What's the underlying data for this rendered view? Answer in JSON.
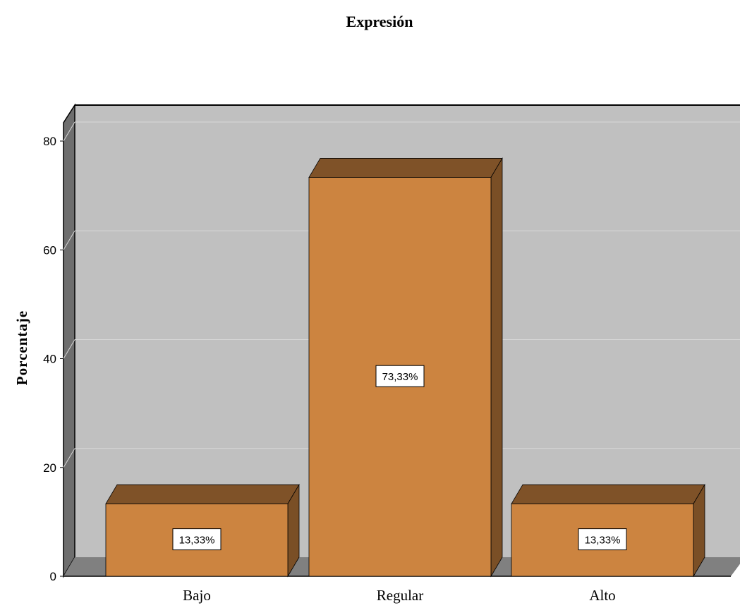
{
  "chart_data": {
    "type": "bar",
    "title": "Expresión",
    "ylabel": "Porcentaje",
    "xlabel": "",
    "categories": [
      "Bajo",
      "Regular",
      "Alto"
    ],
    "values": [
      13.33,
      73.33,
      13.33
    ],
    "data_labels": [
      "13,33%",
      "73,33%",
      "13,33%"
    ],
    "ylim": [
      0,
      80
    ],
    "y_ticks": [
      "0",
      "20",
      "40",
      "60",
      "80"
    ],
    "grid": true,
    "style": "3d",
    "colors": {
      "bar_front": "#CC8440",
      "bar_top": "#7F5228",
      "bar_side": "#7A4F26",
      "plot_back": "#C0C0C0",
      "plot_floor": "#808080",
      "plot_wall": "#6E6E6E",
      "gridline": "#D8D8D8"
    }
  }
}
